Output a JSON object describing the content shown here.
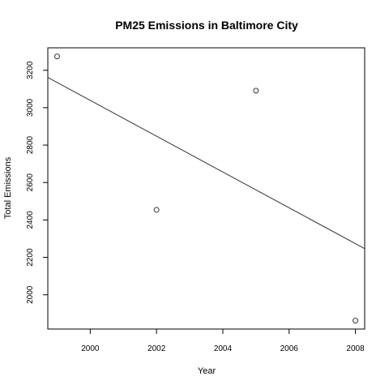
{
  "chart_data": {
    "type": "scatter",
    "title": "PM25 Emissions in Baltimore City",
    "xlabel": "Year",
    "ylabel": "Total Emissions",
    "xlim": [
      1998.72,
      2008.28
    ],
    "ylim": [
      1817,
      3320
    ],
    "x_ticks": [
      2000,
      2002,
      2004,
      2006,
      2008
    ],
    "y_ticks": [
      2000,
      2200,
      2400,
      2600,
      2800,
      3000,
      3200
    ],
    "grid": false,
    "legend": "none",
    "points": [
      {
        "x": 1999,
        "y": 3274
      },
      {
        "x": 2002,
        "y": 2454
      },
      {
        "x": 2005,
        "y": 3091
      },
      {
        "x": 2008,
        "y": 1862
      }
    ],
    "regression_line": {
      "intercept": 194439.2,
      "slope": -95.7,
      "color": "#333333"
    },
    "point_color": "#333333"
  }
}
